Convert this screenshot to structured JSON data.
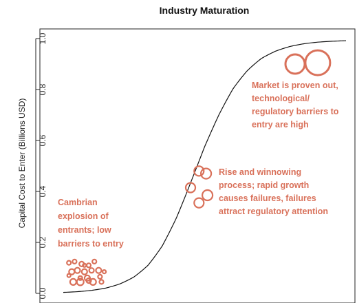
{
  "chart_data": {
    "type": "scatter",
    "title": "Industry Maturation",
    "ylabel": "Capital Cost to Enter (Billions USD)",
    "xlabel": "",
    "ylim": [
      0,
      1
    ],
    "yticks": [
      "0.0",
      "0.2",
      "0.4",
      "0.6",
      "0.8",
      "1.0"
    ],
    "grid": false,
    "legend": "none",
    "curve": {
      "type": "logistic",
      "x": [
        0,
        0.05,
        0.1,
        0.15,
        0.2,
        0.25,
        0.3,
        0.35,
        0.4,
        0.45,
        0.5,
        0.55,
        0.6,
        0.65,
        0.7,
        0.75,
        0.8,
        0.85,
        0.9,
        0.95,
        1.0
      ],
      "y": [
        0.002,
        0.004,
        0.008,
        0.015,
        0.03,
        0.055,
        0.1,
        0.18,
        0.3,
        0.45,
        0.6,
        0.72,
        0.82,
        0.885,
        0.93,
        0.955,
        0.972,
        0.982,
        0.988,
        0.991,
        0.993
      ]
    },
    "series": [
      {
        "points": [
          {
            "x": 0.02,
            "y": 0.12,
            "s": 3
          },
          {
            "x": 0.04,
            "y": 0.125,
            "s": 3
          },
          {
            "x": 0.065,
            "y": 0.115,
            "s": 3.5
          },
          {
            "x": 0.075,
            "y": 0.11,
            "s": 2.5
          },
          {
            "x": 0.09,
            "y": 0.11,
            "s": 3
          },
          {
            "x": 0.11,
            "y": 0.125,
            "s": 3
          },
          {
            "x": 0.03,
            "y": 0.085,
            "s": 4
          },
          {
            "x": 0.05,
            "y": 0.09,
            "s": 4
          },
          {
            "x": 0.075,
            "y": 0.085,
            "s": 4
          },
          {
            "x": 0.1,
            "y": 0.09,
            "s": 3.5
          },
          {
            "x": 0.125,
            "y": 0.09,
            "s": 4
          },
          {
            "x": 0.145,
            "y": 0.085,
            "s": 2.5
          },
          {
            "x": 0.02,
            "y": 0.07,
            "s": 2.5
          },
          {
            "x": 0.06,
            "y": 0.06,
            "s": 3
          },
          {
            "x": 0.085,
            "y": 0.06,
            "s": 4
          },
          {
            "x": 0.13,
            "y": 0.065,
            "s": 3
          },
          {
            "x": 0.035,
            "y": 0.045,
            "s": 4.5
          },
          {
            "x": 0.06,
            "y": 0.045,
            "s": 5
          },
          {
            "x": 0.09,
            "y": 0.05,
            "s": 3.5
          },
          {
            "x": 0.105,
            "y": 0.045,
            "s": 4.5
          },
          {
            "x": 0.135,
            "y": 0.045,
            "s": 3
          }
        ]
      },
      {
        "points": [
          {
            "x": 0.48,
            "y": 0.48,
            "s": 7
          },
          {
            "x": 0.505,
            "y": 0.47,
            "s": 7.5
          },
          {
            "x": 0.45,
            "y": 0.415,
            "s": 7
          },
          {
            "x": 0.51,
            "y": 0.385,
            "s": 7.5
          },
          {
            "x": 0.48,
            "y": 0.355,
            "s": 7
          }
        ]
      },
      {
        "points": [
          {
            "x": 0.82,
            "y": 0.9,
            "s": 14
          },
          {
            "x": 0.9,
            "y": 0.905,
            "s": 18
          }
        ]
      }
    ],
    "annotations": [
      {
        "lines": [
          "Cambrian",
          "explosion of",
          "entrants; low",
          "barriers to entry"
        ]
      },
      {
        "lines": [
          "Rise and winnowing",
          "process; rapid growth",
          "causes failures, failures",
          "attract regulatory attention"
        ]
      },
      {
        "lines": [
          "Market is proven out,",
          "technological/",
          "regulatory barriers to",
          "entry are high"
        ]
      }
    ]
  },
  "colors": {
    "accent": "#d9715a",
    "axis": "#222222",
    "curve": "#111111"
  }
}
